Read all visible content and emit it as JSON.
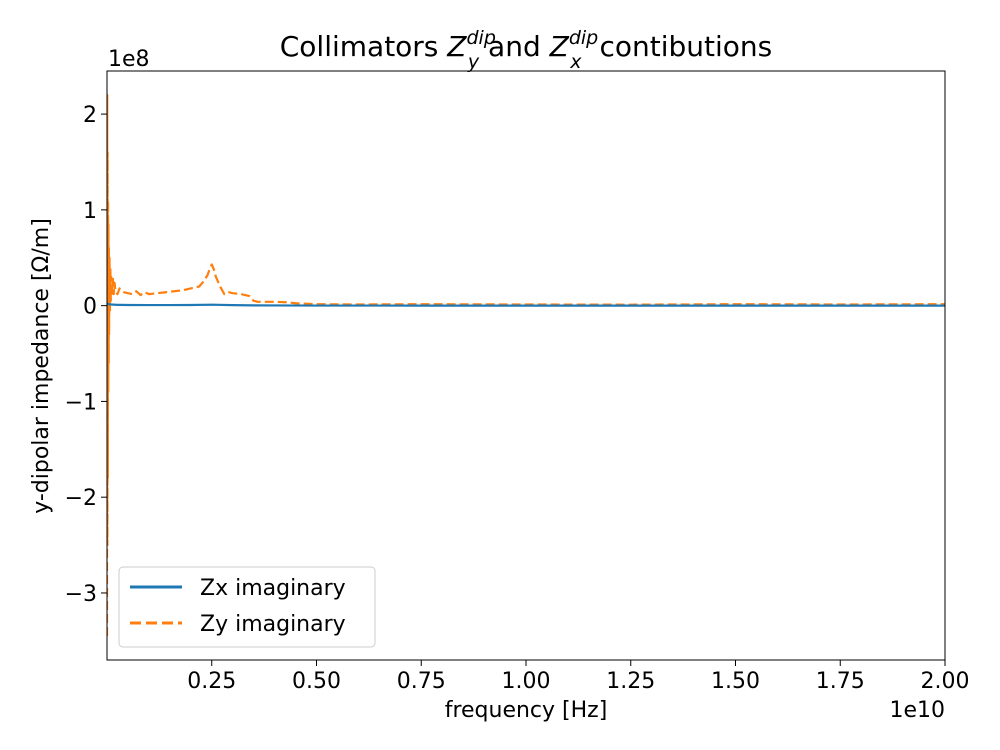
{
  "chart_data": {
    "type": "line",
    "title": {
      "prefix": "Collimators ",
      "sym1": "Z",
      "sub1": "y",
      "sup1": "dip",
      "middle": " and ",
      "sym2": "Z",
      "sub2": "x",
      "sup2": "dip",
      "suffix": "contibutions"
    },
    "xlabel": "frequency [Hz]",
    "ylabel": "y-dipolar impedance [Ω/m]",
    "x_offset_text": "1e10",
    "y_offset_text": "1e8",
    "xlim": [
      0,
      20000000000
    ],
    "ylim": [
      -370000000,
      245000000
    ],
    "x_ticks": [
      {
        "value": 2500000000,
        "label": "0.25"
      },
      {
        "value": 5000000000,
        "label": "0.50"
      },
      {
        "value": 7500000000,
        "label": "0.75"
      },
      {
        "value": 10000000000,
        "label": "1.00"
      },
      {
        "value": 12500000000,
        "label": "1.25"
      },
      {
        "value": 15000000000,
        "label": "1.50"
      },
      {
        "value": 17500000000,
        "label": "1.75"
      },
      {
        "value": 20000000000,
        "label": "2.00"
      }
    ],
    "y_ticks": [
      {
        "value": -300000000,
        "label": "−3"
      },
      {
        "value": -200000000,
        "label": "−2"
      },
      {
        "value": -100000000,
        "label": "−1"
      },
      {
        "value": 0,
        "label": "0"
      },
      {
        "value": 100000000,
        "label": "1"
      },
      {
        "value": 200000000,
        "label": "2"
      }
    ],
    "grid": false,
    "legend_position": "lower-left",
    "series": [
      {
        "name": "Zx imaginary",
        "color": "#1f77b4",
        "style": "solid",
        "x": [
          0,
          50000000,
          100000000,
          200000000,
          300000000,
          500000000,
          1000000000,
          1500000000,
          2000000000,
          2500000000,
          3000000000,
          3500000000,
          4000000000,
          5000000000,
          7500000000,
          10000000000,
          12500000000,
          15000000000,
          17500000000,
          20000000000
        ],
        "y": [
          2000000,
          1500000,
          1200000,
          900000,
          800000,
          700000,
          600000,
          600000,
          700000,
          1000000,
          500000,
          300000,
          200000,
          100000,
          50000,
          30000,
          20000,
          15000,
          10000,
          10000
        ]
      },
      {
        "name": "Zy imaginary",
        "color": "#ff7f0e",
        "style": "dashed",
        "x": [
          0,
          5000000,
          10000000,
          15000000,
          20000000,
          25000000,
          30000000,
          35000000,
          40000000,
          45000000,
          50000000,
          60000000,
          70000000,
          80000000,
          90000000,
          100000000,
          120000000,
          140000000,
          160000000,
          180000000,
          200000000,
          250000000,
          300000000,
          400000000,
          500000000,
          600000000,
          700000000,
          800000000,
          900000000,
          1000000000,
          1200000000,
          1400000000,
          1600000000,
          1800000000,
          2000000000,
          2200000000,
          2300000000,
          2400000000,
          2450000000,
          2500000000,
          2550000000,
          2600000000,
          2700000000,
          2800000000,
          2900000000,
          3000000000,
          3200000000,
          3400000000,
          3500000000,
          3600000000,
          4000000000,
          4300000000,
          4500000000,
          5000000000,
          6000000000,
          7500000000,
          10000000000,
          12500000000,
          15000000000,
          17500000000,
          20000000000
        ],
        "y": [
          -345000000,
          220000000,
          -250000000,
          160000000,
          -180000000,
          110000000,
          -90000000,
          85000000,
          -60000000,
          60000000,
          -30000000,
          50000000,
          -5000000,
          40000000,
          5000000,
          30000000,
          10000000,
          28000000,
          12000000,
          24000000,
          15000000,
          12000000,
          18000000,
          14000000,
          13000000,
          12000000,
          15000000,
          11000000,
          14000000,
          12000000,
          13000000,
          14000000,
          15000000,
          16000000,
          18000000,
          20000000,
          25000000,
          32000000,
          38000000,
          43000000,
          38000000,
          30000000,
          20000000,
          12000000,
          14000000,
          13000000,
          12000000,
          10000000,
          5000000,
          4000000,
          4000000,
          3500000,
          2500000,
          1500000,
          1200000,
          1500000,
          1200000,
          1000000,
          1500000,
          1200000,
          1500000
        ]
      }
    ]
  }
}
